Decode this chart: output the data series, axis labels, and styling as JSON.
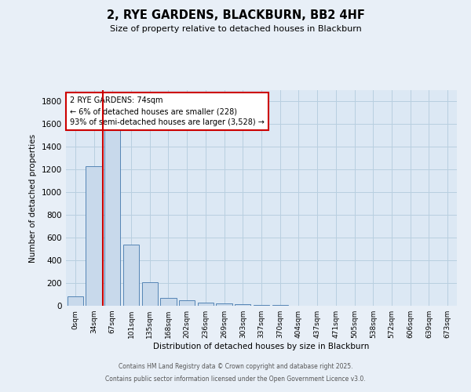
{
  "title": "2, RYE GARDENS, BLACKBURN, BB2 4HF",
  "subtitle": "Size of property relative to detached houses in Blackburn",
  "xlabel": "Distribution of detached houses by size in Blackburn",
  "ylabel": "Number of detached properties",
  "bar_labels": [
    "0sqm",
    "34sqm",
    "67sqm",
    "101sqm",
    "135sqm",
    "168sqm",
    "202sqm",
    "236sqm",
    "269sqm",
    "303sqm",
    "337sqm",
    "370sqm",
    "404sqm",
    "437sqm",
    "471sqm",
    "505sqm",
    "538sqm",
    "572sqm",
    "606sqm",
    "639sqm",
    "673sqm"
  ],
  "bar_values": [
    80,
    1230,
    1560,
    540,
    210,
    70,
    45,
    30,
    20,
    15,
    10,
    5,
    3,
    2,
    2,
    1,
    1,
    1,
    1,
    0,
    0
  ],
  "bar_color": "#c8d9eb",
  "bar_edge_color": "#5585b5",
  "grid_color": "#b8cfe0",
  "background_color": "#dce8f4",
  "bg_outer": "#e8eff7",
  "vline_x": 1.5,
  "vline_color": "#cc0000",
  "annotation_text": "2 RYE GARDENS: 74sqm\n← 6% of detached houses are smaller (228)\n93% of semi-detached houses are larger (3,528) →",
  "annotation_box_color": "#cc0000",
  "annotation_box_fill": "#ffffff",
  "ylim": [
    0,
    1900
  ],
  "yticks": [
    0,
    200,
    400,
    600,
    800,
    1000,
    1200,
    1400,
    1600,
    1800
  ],
  "footer_line1": "Contains HM Land Registry data © Crown copyright and database right 2025.",
  "footer_line2": "Contains public sector information licensed under the Open Government Licence v3.0."
}
